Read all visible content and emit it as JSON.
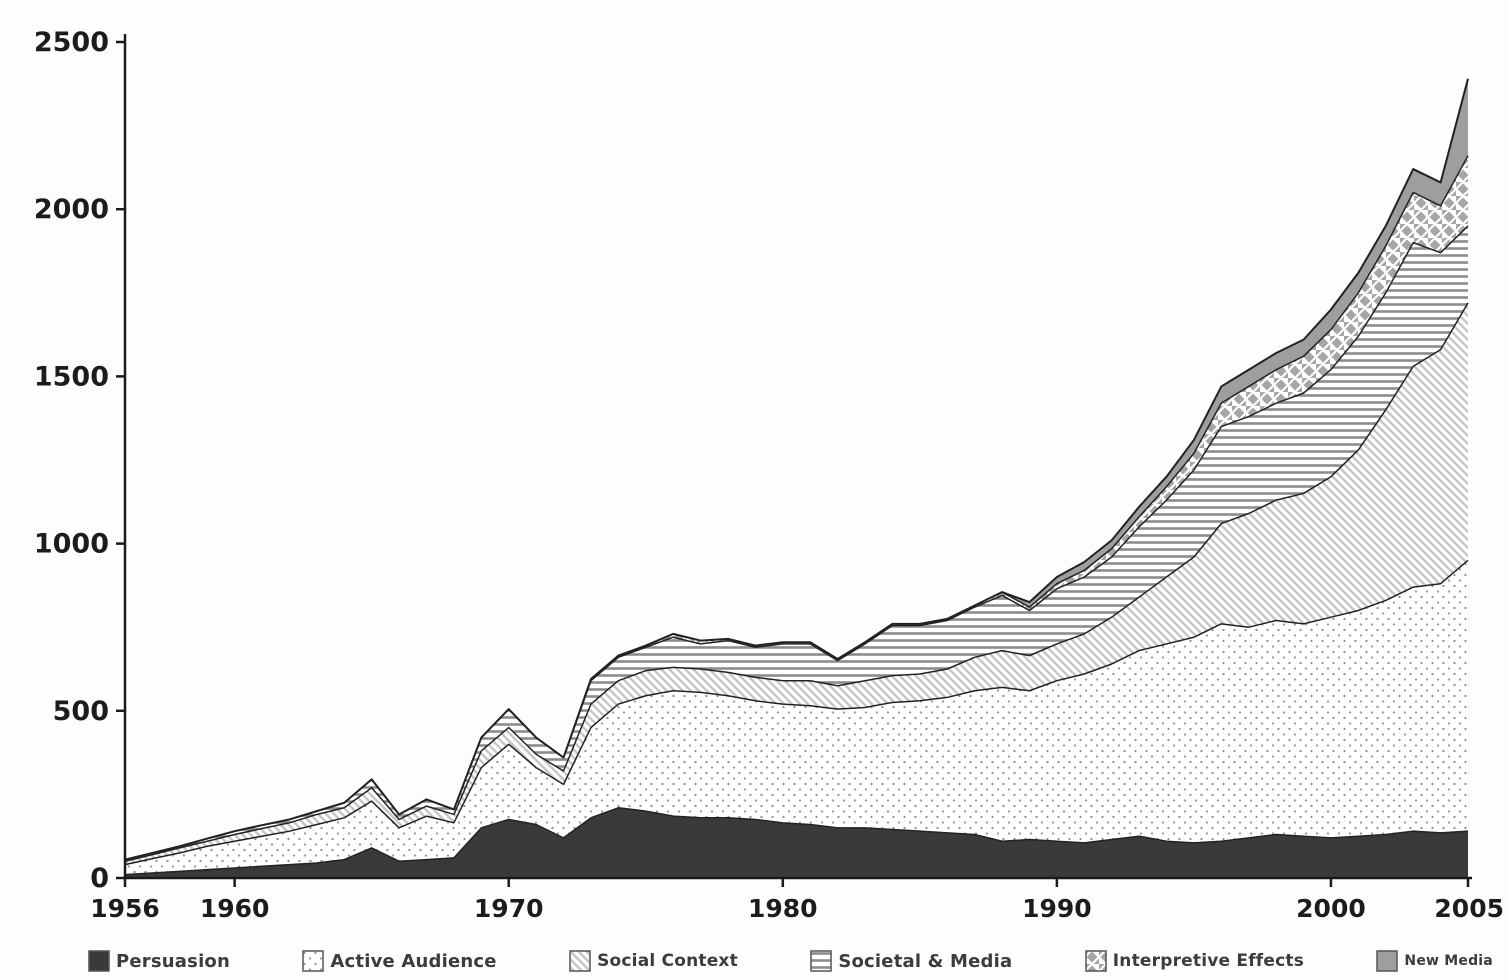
{
  "chart_data": {
    "type": "area",
    "stacked": true,
    "title": "",
    "xlabel": "",
    "ylabel": "",
    "grid": false,
    "legend_position": "bottom",
    "xlim": [
      1956,
      2005
    ],
    "ylim": [
      0,
      2500
    ],
    "y_ticks": [
      0,
      500,
      1000,
      1500,
      2000,
      2500
    ],
    "x_tick_labels": [
      1956,
      1960,
      1970,
      1980,
      1990,
      2000,
      2005
    ],
    "axis_color": "#1a1a1a",
    "outline_color": "#222222",
    "x": [
      1956,
      1957,
      1958,
      1959,
      1960,
      1961,
      1962,
      1963,
      1964,
      1965,
      1966,
      1967,
      1968,
      1969,
      1970,
      1971,
      1972,
      1973,
      1974,
      1975,
      1976,
      1977,
      1978,
      1979,
      1980,
      1981,
      1982,
      1983,
      1984,
      1985,
      1986,
      1987,
      1988,
      1989,
      1990,
      1991,
      1992,
      1993,
      1994,
      1995,
      1996,
      1997,
      1998,
      1999,
      2000,
      2001,
      2002,
      2003,
      2004,
      2005
    ],
    "series": [
      {
        "name": "Persuasion",
        "pattern": "solid-dark",
        "color": "#3a3a3a",
        "values": [
          10,
          15,
          20,
          25,
          30,
          35,
          40,
          45,
          55,
          90,
          50,
          55,
          60,
          150,
          175,
          160,
          120,
          180,
          210,
          200,
          185,
          180,
          180,
          175,
          165,
          160,
          150,
          150,
          145,
          140,
          135,
          130,
          110,
          115,
          110,
          105,
          115,
          125,
          110,
          105,
          110,
          120,
          130,
          125,
          120,
          125,
          130,
          140,
          135,
          140
        ]
      },
      {
        "name": "Active Audience",
        "pattern": "dots",
        "color": "#9a9a9a",
        "values": [
          30,
          43,
          55,
          70,
          80,
          90,
          100,
          115,
          125,
          140,
          100,
          130,
          105,
          180,
          225,
          170,
          160,
          270,
          310,
          345,
          375,
          375,
          365,
          355,
          355,
          355,
          355,
          360,
          380,
          390,
          405,
          430,
          460,
          445,
          480,
          505,
          525,
          555,
          590,
          615,
          650,
          630,
          640,
          635,
          660,
          675,
          700,
          730,
          745,
          810
        ]
      },
      {
        "name": "Social Context",
        "pattern": "diagonal",
        "color": "#c4c4c4",
        "values": [
          10,
          12,
          15,
          15,
          20,
          23,
          25,
          30,
          30,
          40,
          25,
          30,
          25,
          50,
          50,
          40,
          40,
          70,
          70,
          75,
          70,
          70,
          70,
          70,
          70,
          75,
          70,
          80,
          80,
          80,
          85,
          100,
          110,
          105,
          110,
          120,
          140,
          160,
          200,
          240,
          300,
          340,
          360,
          390,
          420,
          480,
          570,
          660,
          700,
          770
        ]
      },
      {
        "name": "Societal & Media",
        "pattern": "hlines",
        "color": "#8f8f8f",
        "values": [
          5,
          5,
          5,
          8,
          10,
          10,
          10,
          10,
          15,
          25,
          15,
          20,
          15,
          40,
          55,
          50,
          40,
          70,
          70,
          70,
          90,
          75,
          95,
          90,
          110,
          110,
          75,
          110,
          150,
          145,
          145,
          150,
          165,
          135,
          165,
          170,
          180,
          210,
          230,
          260,
          290,
          290,
          290,
          300,
          320,
          340,
          350,
          370,
          290,
          230
        ]
      },
      {
        "name": "Interpretive Effects",
        "pattern": "diamonds",
        "color": "#a8a8a8",
        "values": [
          0,
          0,
          0,
          0,
          0,
          0,
          0,
          0,
          0,
          0,
          0,
          0,
          0,
          0,
          0,
          0,
          0,
          5,
          5,
          5,
          10,
          10,
          5,
          5,
          5,
          5,
          5,
          5,
          5,
          5,
          5,
          5,
          10,
          10,
          15,
          20,
          25,
          30,
          40,
          50,
          70,
          90,
          100,
          110,
          120,
          130,
          140,
          150,
          140,
          210
        ]
      },
      {
        "name": "New Media",
        "pattern": "solid-gray",
        "color": "#9e9e9e",
        "values": [
          0,
          0,
          0,
          0,
          0,
          0,
          0,
          0,
          0,
          0,
          0,
          0,
          0,
          0,
          0,
          0,
          0,
          0,
          0,
          0,
          0,
          0,
          0,
          0,
          0,
          0,
          0,
          0,
          0,
          0,
          0,
          0,
          0,
          15,
          20,
          25,
          25,
          30,
          30,
          40,
          50,
          50,
          50,
          50,
          60,
          60,
          60,
          70,
          70,
          230
        ]
      }
    ]
  }
}
